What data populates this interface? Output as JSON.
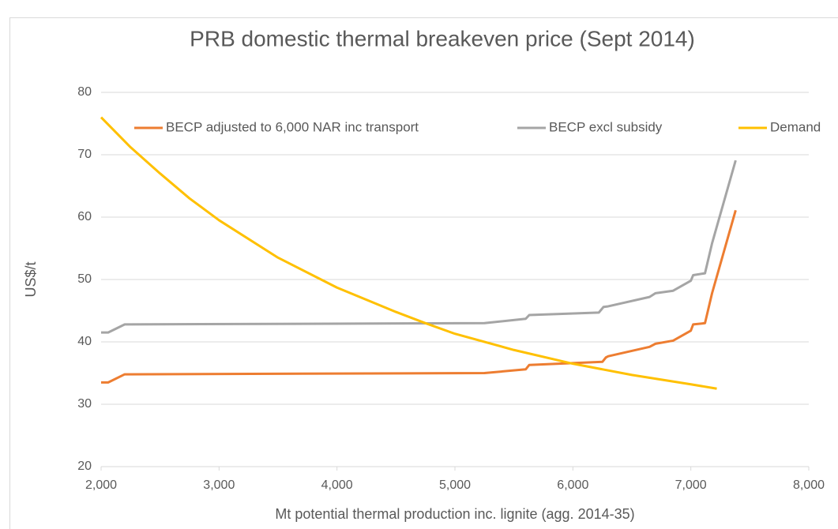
{
  "chart_data": {
    "type": "line",
    "title": "PRB domestic thermal breakeven price (Sept 2014)",
    "xlabel": "Mt potential thermal production inc. lignite (agg. 2014-35)",
    "ylabel": "US$/t",
    "xlim": [
      2000,
      8000
    ],
    "xticks": [
      {
        "value": 2000,
        "label": "2,000"
      },
      {
        "value": 3000,
        "label": "3,000"
      },
      {
        "value": 4000,
        "label": "4,000"
      },
      {
        "value": 5000,
        "label": "5,000"
      },
      {
        "value": 6000,
        "label": "6,000"
      },
      {
        "value": 7000,
        "label": "7,000"
      },
      {
        "value": 8000,
        "label": "8,000"
      }
    ],
    "ylim": [
      20,
      80
    ],
    "yticks": [
      20,
      30,
      40,
      50,
      60,
      70,
      80
    ],
    "grid": true,
    "legend": "top",
    "series": [
      {
        "name": "BECP adjusted to 6,000 NAR inc transport",
        "color": "#ED7D31",
        "x": [
          2000,
          2060,
          2200,
          5250,
          5600,
          5630,
          6250,
          6280,
          6300,
          6650,
          6700,
          6850,
          7000,
          7020,
          7120,
          7180,
          7380
        ],
        "values": [
          33.5,
          33.5,
          34.8,
          35,
          35.6,
          36.3,
          36.8,
          37.5,
          37.7,
          39.2,
          39.7,
          40.2,
          41.8,
          42.8,
          43.0,
          47.8,
          61.1
        ]
      },
      {
        "name": "BECP excl subsidy",
        "color": "#A5A5A5",
        "x": [
          2000,
          2060,
          2200,
          5250,
          5600,
          5630,
          6220,
          6260,
          6300,
          6650,
          6700,
          6850,
          7000,
          7020,
          7120,
          7180,
          7380
        ],
        "values": [
          41.5,
          41.5,
          42.8,
          43,
          43.7,
          44.3,
          44.7,
          45.6,
          45.7,
          47.2,
          47.8,
          48.2,
          49.8,
          50.7,
          51.0,
          55.8,
          69.1
        ]
      },
      {
        "name": "Demand",
        "color": "#FFC000",
        "x": [
          2000,
          2250,
          2500,
          2750,
          3000,
          3500,
          4000,
          4500,
          4750,
          5000,
          5500,
          6000,
          6500,
          7000,
          7220
        ],
        "values": [
          76,
          71.2,
          67,
          63,
          59.5,
          53.5,
          48.7,
          44.8,
          43,
          41.3,
          38.7,
          36.5,
          34.7,
          33.2,
          32.5
        ]
      }
    ]
  }
}
